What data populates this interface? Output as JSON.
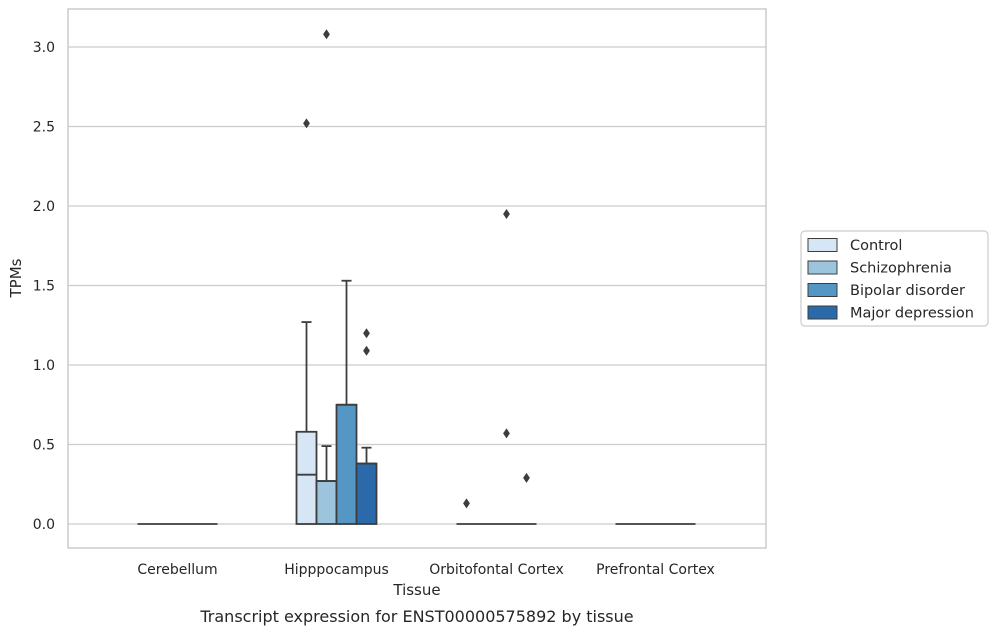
{
  "chart_data": {
    "type": "box",
    "xlabel": "Tissue",
    "ylabel": "TPMs",
    "caption": "Transcript expression for ENST00000575892 by tissue",
    "ylim": [
      -0.15,
      3.25
    ],
    "yticks": [
      "0.0",
      "0.5",
      "1.0",
      "1.5",
      "2.0",
      "2.5",
      "3.0"
    ],
    "grid": "horizontal",
    "legend_position": "right",
    "categories": [
      "Cerebellum",
      "Hipppocampus",
      "Orbitofontal Cortex",
      "Prefrontal Cortex"
    ],
    "series": [
      {
        "name": "Control",
        "color": "#d7e6f4",
        "boxes": [
          {
            "category": "Cerebellum",
            "q1": 0,
            "median": 0,
            "q3": 0,
            "whisker_low": 0,
            "whisker_high": 0,
            "outliers": []
          },
          {
            "category": "Hipppocampus",
            "q1": 0,
            "median": 0.31,
            "q3": 0.58,
            "whisker_low": 0,
            "whisker_high": 1.27,
            "outliers": [
              2.52
            ]
          },
          {
            "category": "Orbitofontal Cortex",
            "q1": 0,
            "median": 0,
            "q3": 0,
            "whisker_low": 0,
            "whisker_high": 0,
            "outliers": [
              0.13
            ]
          },
          {
            "category": "Prefrontal Cortex",
            "q1": 0,
            "median": 0,
            "q3": 0,
            "whisker_low": 0,
            "whisker_high": 0,
            "outliers": []
          }
        ]
      },
      {
        "name": "Schizophrenia",
        "color": "#9cc4dd",
        "boxes": [
          {
            "category": "Cerebellum",
            "q1": 0,
            "median": 0,
            "q3": 0,
            "whisker_low": 0,
            "whisker_high": 0,
            "outliers": []
          },
          {
            "category": "Hipppocampus",
            "q1": 0,
            "median": 0.27,
            "q3": 0.27,
            "whisker_low": 0,
            "whisker_high": 0.49,
            "outliers": [
              3.08
            ]
          },
          {
            "category": "Orbitofontal Cortex",
            "q1": 0,
            "median": 0,
            "q3": 0,
            "whisker_low": 0,
            "whisker_high": 0,
            "outliers": []
          },
          {
            "category": "Prefrontal Cortex",
            "q1": 0,
            "median": 0,
            "q3": 0,
            "whisker_low": 0,
            "whisker_high": 0,
            "outliers": []
          }
        ]
      },
      {
        "name": "Bipolar disorder",
        "color": "#5597c4",
        "boxes": [
          {
            "category": "Cerebellum",
            "q1": 0,
            "median": 0,
            "q3": 0,
            "whisker_low": 0,
            "whisker_high": 0,
            "outliers": []
          },
          {
            "category": "Hipppocampus",
            "q1": 0,
            "median": 0.75,
            "q3": 0.75,
            "whisker_low": 0,
            "whisker_high": 1.53,
            "outliers": []
          },
          {
            "category": "Orbitofontal Cortex",
            "q1": 0,
            "median": 0,
            "q3": 0,
            "whisker_low": 0,
            "whisker_high": 0,
            "outliers": [
              0.57,
              1.95
            ]
          },
          {
            "category": "Prefrontal Cortex",
            "q1": 0,
            "median": 0,
            "q3": 0,
            "whisker_low": 0,
            "whisker_high": 0,
            "outliers": []
          }
        ]
      },
      {
        "name": "Major depression",
        "color": "#2a6aaa",
        "boxes": [
          {
            "category": "Cerebellum",
            "q1": 0,
            "median": 0,
            "q3": 0,
            "whisker_low": 0,
            "whisker_high": 0,
            "outliers": []
          },
          {
            "category": "Hipppocampus",
            "q1": 0,
            "median": 0.38,
            "q3": 0.38,
            "whisker_low": 0,
            "whisker_high": 0.48,
            "outliers": [
              1.09,
              1.2
            ]
          },
          {
            "category": "Orbitofontal Cortex",
            "q1": 0,
            "median": 0,
            "q3": 0,
            "whisker_low": 0,
            "whisker_high": 0,
            "outliers": [
              0.29
            ]
          },
          {
            "category": "Prefrontal Cortex",
            "q1": 0,
            "median": 0,
            "q3": 0,
            "whisker_low": 0,
            "whisker_high": 0,
            "outliers": []
          }
        ]
      }
    ]
  }
}
